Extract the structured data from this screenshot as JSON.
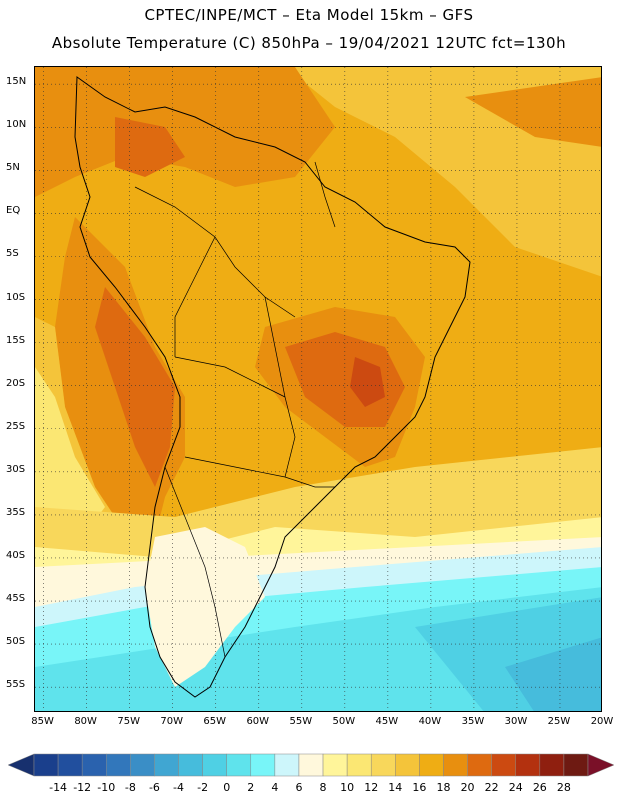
{
  "header": {
    "line1": "CPTEC/INPE/MCT –  Eta Model 15km – GFS",
    "line2": "Absolute Temperature (C) 850hPa – 19/04/2021 12UTC fct=130h"
  },
  "map": {
    "projection": "lat-lon",
    "lon_range": [
      -86,
      -20
    ],
    "lat_range": [
      -58,
      17
    ],
    "lat_labels": [
      "15N",
      "10N",
      "5N",
      "EQ",
      "5S",
      "10S",
      "15S",
      "20S",
      "25S",
      "30S",
      "35S",
      "40S",
      "45S",
      "50S",
      "55S"
    ],
    "lon_labels": [
      "85W",
      "80W",
      "75W",
      "70W",
      "65W",
      "60W",
      "55W",
      "50W",
      "45W",
      "40W",
      "35W",
      "30W",
      "25W",
      "20W"
    ],
    "gridlines": "dotted"
  },
  "colorbar": {
    "labels": [
      "-14",
      "-12",
      "-10",
      "-8",
      "-6",
      "-4",
      "-2",
      "0",
      "2",
      "4",
      "6",
      "8",
      "10",
      "12",
      "14",
      "16",
      "18",
      "20",
      "22",
      "24",
      "26",
      "28"
    ],
    "colors": [
      "#1a3f8c",
      "#214f9e",
      "#2a62ae",
      "#3277bb",
      "#3a8ec6",
      "#40a6d2",
      "#46bcdc",
      "#4fd0e4",
      "#5fe3ec",
      "#78f5f8",
      "#cdf6fb",
      "#fff8dc",
      "#fff59a",
      "#fbe773",
      "#f8d75b",
      "#f4c43a",
      "#efad14",
      "#e88f0f",
      "#de6a10",
      "#cc4a11",
      "#b3310f",
      "#8f1f0f",
      "#6e1a12"
    ],
    "under_color": "#17306e",
    "over_color": "#7a1028"
  }
}
